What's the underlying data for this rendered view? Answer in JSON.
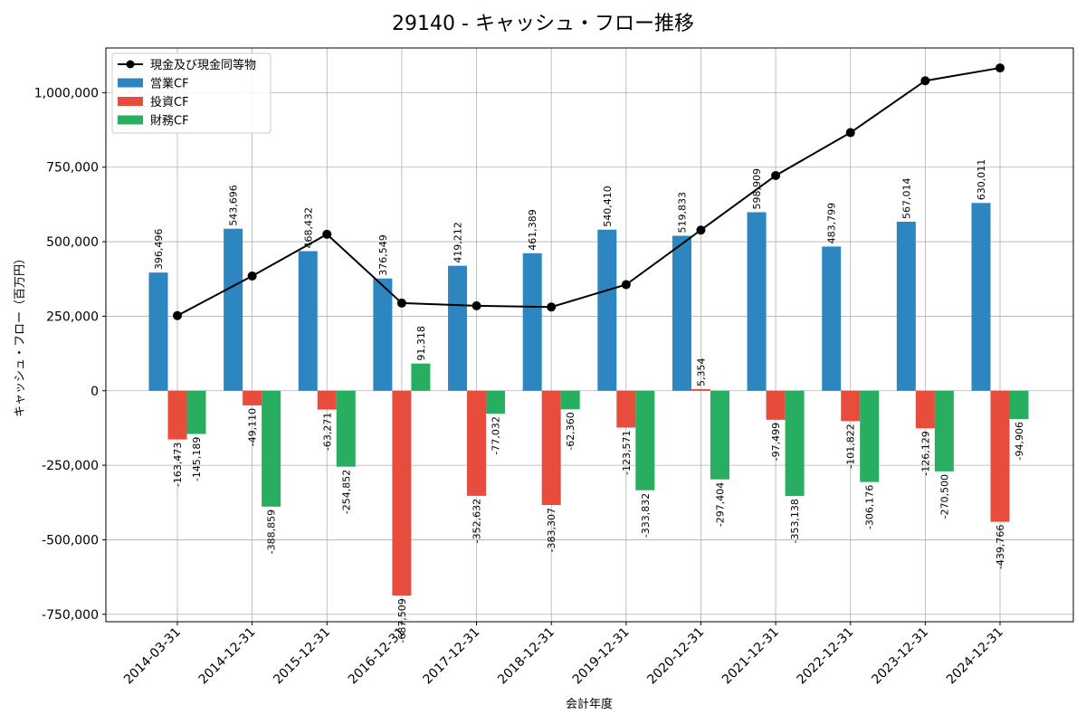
{
  "chart_data": {
    "type": "bar",
    "title": "29140 - キャッシュ・フロー推移",
    "xlabel": "会計年度",
    "ylabel": "キャッシュ・フロー（百万円）",
    "ylim": [
      -775000,
      1150000
    ],
    "yticks": [
      -750000,
      -500000,
      -250000,
      0,
      250000,
      500000,
      750000,
      1000000
    ],
    "ytick_labels": [
      "-750,000",
      "-500,000",
      "-250,000",
      "0",
      "250,000",
      "500,000",
      "750,000",
      "1,000,000"
    ],
    "grid": true,
    "legend_position": "top-left",
    "categories": [
      "2014-03-31",
      "2014-12-31",
      "2015-12-31",
      "2016-12-31",
      "2017-12-31",
      "2018-12-31",
      "2019-12-31",
      "2020-12-31",
      "2021-12-31",
      "2022-12-31",
      "2023-12-31",
      "2024-12-31"
    ],
    "series": [
      {
        "name": "営業CF",
        "kind": "bar",
        "color": "#2e86c1",
        "values": [
          396496,
          543696,
          468432,
          376549,
          419212,
          461389,
          540410,
          519833,
          598909,
          483799,
          567014,
          630011
        ],
        "labels": [
          "396,496",
          "543,696",
          "468,432",
          "376,549",
          "419,212",
          "461,389",
          "540,410",
          "519,833",
          "598,909",
          "483,799",
          "567,014",
          "630,011"
        ]
      },
      {
        "name": "投資CF",
        "kind": "bar",
        "color": "#e74c3c",
        "values": [
          -163473,
          -49110,
          -63271,
          -687509,
          -352632,
          -383307,
          -123571,
          5354,
          -97499,
          -101822,
          -126129,
          -439766
        ],
        "labels": [
          "-163,473",
          "-49,110",
          "-63,271",
          "-687,509",
          "-352,632",
          "-383,307",
          "-123,571",
          "5,354",
          "-97,499",
          "-101,822",
          "-126,129",
          "-439,766"
        ]
      },
      {
        "name": "財務CF",
        "kind": "bar",
        "color": "#27ae60",
        "values": [
          -145189,
          -388859,
          -254852,
          91318,
          -77032,
          -62360,
          -333832,
          -297404,
          -353138,
          -306176,
          -270500,
          -94906
        ],
        "labels": [
          "-145,189",
          "-388,859",
          "-254,852",
          "91,318",
          "-77,032",
          "-62,360",
          "-333,832",
          "-297,404",
          "-353,138",
          "-306,176",
          "-270,500",
          "-94,906"
        ]
      },
      {
        "name": "現金及び現金同等物",
        "kind": "line",
        "color": "#000000",
        "values": [
          252000,
          385000,
          525000,
          294000,
          285000,
          281000,
          356000,
          539000,
          722000,
          866000,
          1040000,
          1083000
        ]
      }
    ]
  }
}
